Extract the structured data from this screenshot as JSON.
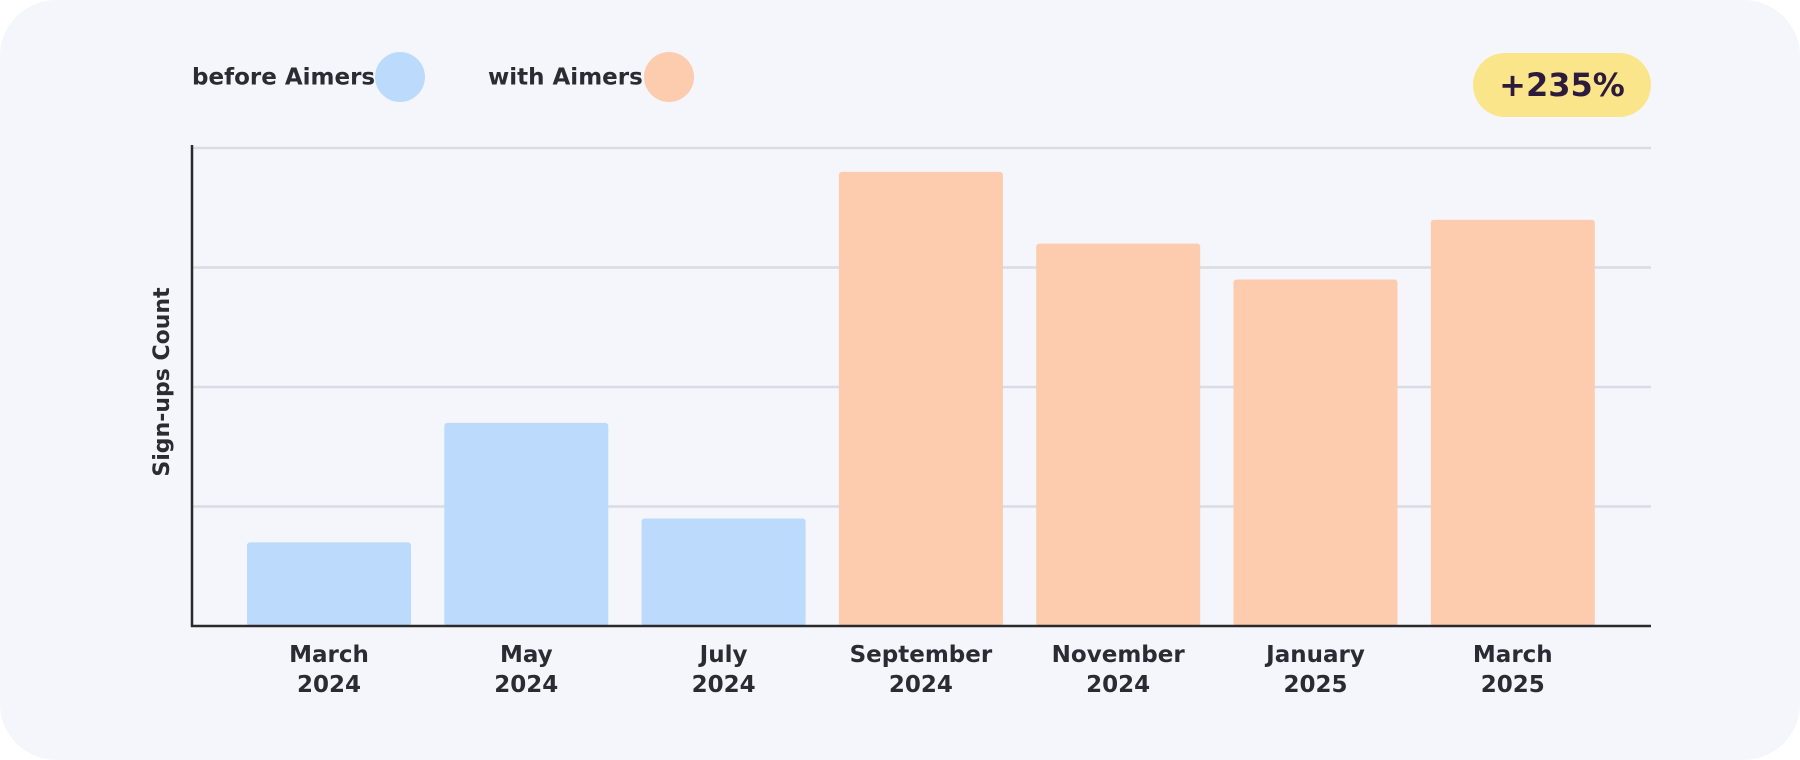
{
  "chart_data": {
    "type": "bar",
    "y_label": "Sign-ups Count",
    "annotation": "+235%",
    "categories": [
      "March 2024",
      "May 2024",
      "July 2024",
      "September 2024",
      "November 2024",
      "January 2025",
      "March 2025"
    ],
    "series": [
      {
        "name": "before Aimers",
        "color": "#bcdafc",
        "values": [
          0.7,
          1.7,
          0.9,
          null,
          null,
          null,
          null
        ]
      },
      {
        "name": "with Aimers",
        "color": "#fdcbad",
        "values": [
          null,
          null,
          null,
          3.8,
          3.2,
          2.9,
          3.4
        ]
      }
    ],
    "ylim": [
      0,
      4
    ],
    "yticks": [
      1,
      2,
      3,
      4
    ],
    "grid": true
  }
}
